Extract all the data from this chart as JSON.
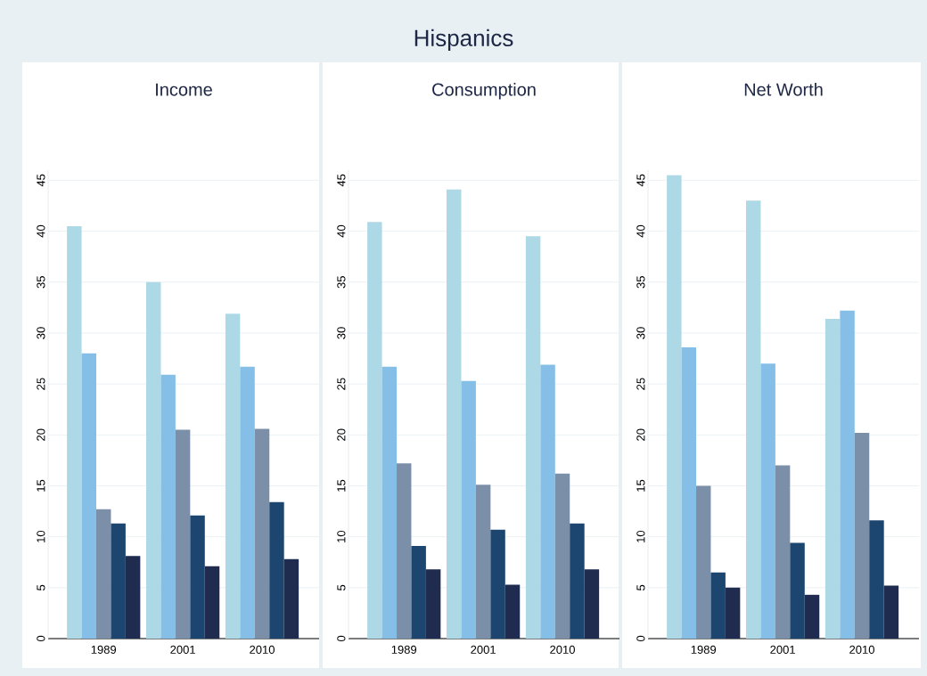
{
  "chart_data": [
    {
      "type": "bar",
      "title": "Income",
      "annotations": [
        "Hispanics"
      ],
      "categories": [
        "1989",
        "2001",
        "2010"
      ],
      "ylim": [
        0,
        46
      ],
      "yticks": [
        0,
        5,
        10,
        15,
        20,
        25,
        30,
        35,
        40,
        45
      ],
      "grid": "y",
      "series": [
        {
          "color": "#add8e6",
          "values": [
            40.5,
            35.0,
            31.9
          ]
        },
        {
          "color": "#85bfe8",
          "values": [
            28.0,
            25.9,
            26.7
          ]
        },
        {
          "color": "#7b90a8",
          "values": [
            12.7,
            20.5,
            20.6
          ]
        },
        {
          "color": "#1c4670",
          "values": [
            11.3,
            12.1,
            13.4
          ]
        },
        {
          "color": "#1f2c50",
          "values": [
            8.1,
            7.1,
            7.8
          ]
        }
      ]
    },
    {
      "type": "bar",
      "title": "Consumption",
      "categories": [
        "1989",
        "2001",
        "2010"
      ],
      "ylim": [
        0,
        46
      ],
      "yticks": [
        0,
        5,
        10,
        15,
        20,
        25,
        30,
        35,
        40,
        45
      ],
      "grid": "y",
      "series": [
        {
          "color": "#add8e6",
          "values": [
            40.9,
            44.1,
            39.5
          ]
        },
        {
          "color": "#85bfe8",
          "values": [
            26.7,
            25.3,
            26.9
          ]
        },
        {
          "color": "#7b90a8",
          "values": [
            17.2,
            15.1,
            16.2
          ]
        },
        {
          "color": "#1c4670",
          "values": [
            9.1,
            10.7,
            11.3
          ]
        },
        {
          "color": "#1f2c50",
          "values": [
            6.8,
            5.3,
            6.8
          ]
        }
      ]
    },
    {
      "type": "bar",
      "title": "Net Worth",
      "categories": [
        "1989",
        "2001",
        "2010"
      ],
      "ylim": [
        0,
        46
      ],
      "yticks": [
        0,
        5,
        10,
        15,
        20,
        25,
        30,
        35,
        40,
        45
      ],
      "grid": "y",
      "series": [
        {
          "color": "#add8e6",
          "values": [
            45.5,
            43.0,
            31.4
          ]
        },
        {
          "color": "#85bfe8",
          "values": [
            28.6,
            27.0,
            32.2
          ]
        },
        {
          "color": "#7b90a8",
          "values": [
            15.0,
            17.0,
            20.2
          ]
        },
        {
          "color": "#1c4670",
          "values": [
            6.5,
            9.4,
            11.6
          ]
        },
        {
          "color": "#1f2c50",
          "values": [
            5.0,
            4.3,
            5.2
          ]
        }
      ]
    }
  ]
}
